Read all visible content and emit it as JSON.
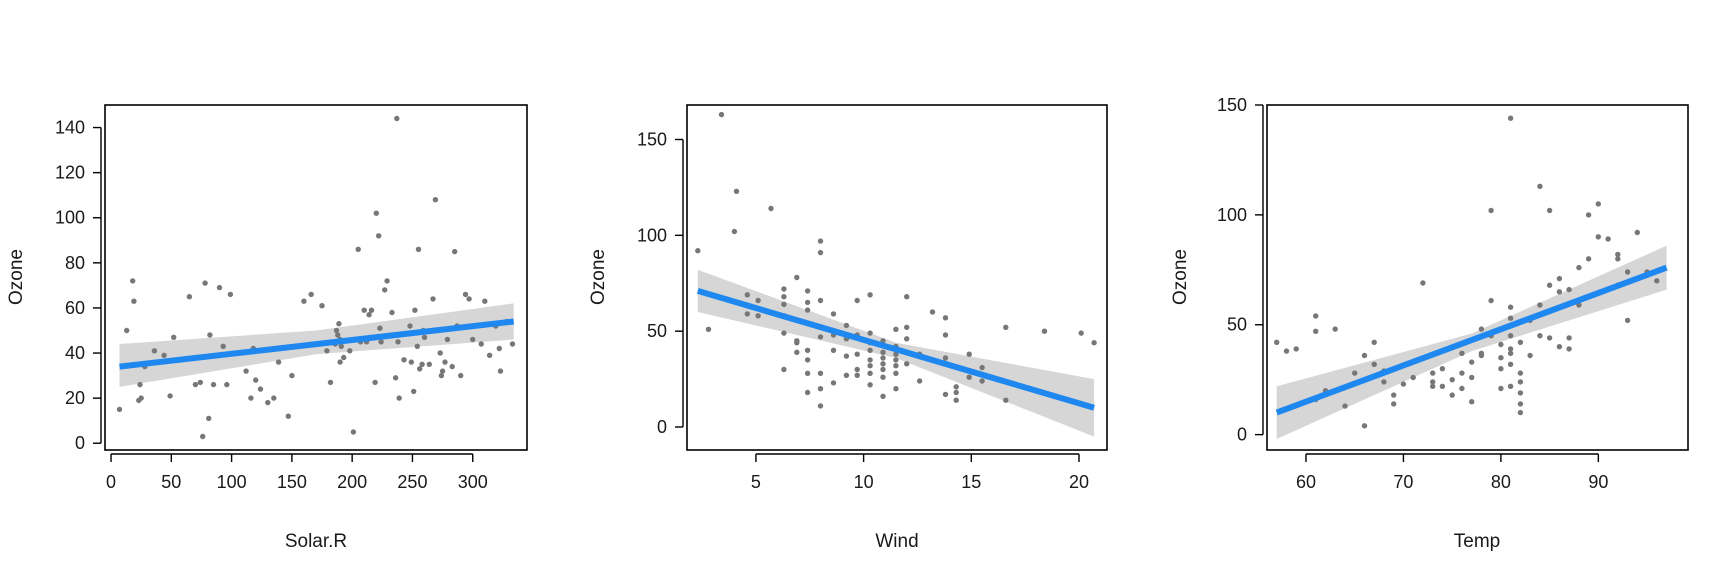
{
  "chart_data": [
    {
      "type": "scatter",
      "title": "",
      "xlabel": "Solar.R",
      "ylabel": "Ozone",
      "xlim": [
        -5,
        345
      ],
      "ylim": [
        -3,
        150
      ],
      "xticks": [
        0,
        50,
        100,
        150,
        200,
        250,
        300
      ],
      "yticks": [
        0,
        20,
        40,
        60,
        80,
        100,
        120,
        140
      ],
      "grid": false,
      "legend": "none",
      "colors": {
        "points": "#777777",
        "line": "#1e88f0",
        "band": "#d6d6d6"
      },
      "trend_line": [
        [
          7,
          34
        ],
        [
          334,
          54
        ]
      ],
      "confidence_band": {
        "x": [
          7,
          170,
          334
        ],
        "upper": [
          44,
          50,
          62
        ],
        "lower": [
          25,
          39.5,
          46
        ]
      },
      "points": [
        [
          7,
          15
        ],
        [
          13,
          50
        ],
        [
          18,
          72
        ],
        [
          19,
          63
        ],
        [
          23,
          19
        ],
        [
          24,
          26
        ],
        [
          25,
          20
        ],
        [
          28,
          34
        ],
        [
          36,
          41
        ],
        [
          44,
          39
        ],
        [
          49,
          21
        ],
        [
          52,
          47
        ],
        [
          70,
          26
        ],
        [
          65,
          65
        ],
        [
          74,
          27
        ],
        [
          76,
          3
        ],
        [
          78,
          71
        ],
        [
          81,
          11
        ],
        [
          82,
          48
        ],
        [
          85,
          26
        ],
        [
          90,
          69
        ],
        [
          93,
          43
        ],
        [
          96,
          26
        ],
        [
          99,
          66
        ],
        [
          112,
          32
        ],
        [
          116,
          20
        ],
        [
          118,
          42
        ],
        [
          120,
          28
        ],
        [
          124,
          24
        ],
        [
          130,
          18
        ],
        [
          135,
          20
        ],
        [
          139,
          36
        ],
        [
          147,
          12
        ],
        [
          150,
          30
        ],
        [
          160,
          63
        ],
        [
          166,
          66
        ],
        [
          175,
          61
        ],
        [
          179,
          41
        ],
        [
          182,
          27
        ],
        [
          186,
          44
        ],
        [
          187,
          50
        ],
        [
          188,
          48
        ],
        [
          189,
          53
        ],
        [
          190,
          46
        ],
        [
          190,
          36
        ],
        [
          191,
          43
        ],
        [
          193,
          38
        ],
        [
          198,
          41
        ],
        [
          201,
          5
        ],
        [
          205,
          86
        ],
        [
          207,
          45
        ],
        [
          210,
          59
        ],
        [
          212,
          45
        ],
        [
          214,
          57
        ],
        [
          216,
          59
        ],
        [
          219,
          27
        ],
        [
          220,
          102
        ],
        [
          222,
          92
        ],
        [
          223,
          51
        ],
        [
          224,
          45
        ],
        [
          227,
          68
        ],
        [
          229,
          72
        ],
        [
          233,
          58
        ],
        [
          236,
          29
        ],
        [
          237,
          144
        ],
        [
          238,
          45
        ],
        [
          239,
          20
        ],
        [
          243,
          37
        ],
        [
          248,
          52
        ],
        [
          249,
          36
        ],
        [
          251,
          23
        ],
        [
          252,
          59
        ],
        [
          254,
          43
        ],
        [
          255,
          86
        ],
        [
          256,
          33
        ],
        [
          258,
          35
        ],
        [
          259,
          50
        ],
        [
          260,
          47
        ],
        [
          264,
          35
        ],
        [
          267,
          64
        ],
        [
          269,
          108
        ],
        [
          273,
          40
        ],
        [
          274,
          30
        ],
        [
          275,
          32
        ],
        [
          277,
          36
        ],
        [
          279,
          46
        ],
        [
          283,
          34
        ],
        [
          285,
          85
        ],
        [
          287,
          52
        ],
        [
          290,
          30
        ],
        [
          294,
          66
        ],
        [
          297,
          64
        ],
        [
          300,
          46
        ],
        [
          307,
          44
        ],
        [
          310,
          63
        ],
        [
          314,
          39
        ],
        [
          319,
          52
        ],
        [
          322,
          42
        ],
        [
          323,
          32
        ],
        [
          328,
          54
        ],
        [
          333,
          44
        ]
      ]
    },
    {
      "type": "scatter",
      "title": "",
      "xlabel": "Wind",
      "ylabel": "Ozone",
      "xlim": [
        1.8,
        21.3
      ],
      "ylim": [
        -12,
        168
      ],
      "xticks": [
        5,
        10,
        15,
        20
      ],
      "yticks": [
        0,
        50,
        100,
        150
      ],
      "grid": false,
      "legend": "none",
      "colors": {
        "points": "#777777",
        "line": "#1e88f0",
        "band": "#d6d6d6"
      },
      "trend_line": [
        [
          2.3,
          71
        ],
        [
          20.7,
          10
        ]
      ],
      "confidence_band": {
        "x": [
          2.3,
          11.5,
          20.7
        ],
        "upper": [
          82,
          44,
          25
        ],
        "lower": [
          60,
          36,
          -5
        ]
      },
      "points": [
        [
          2.3,
          92
        ],
        [
          2.8,
          51
        ],
        [
          3.4,
          163
        ],
        [
          4.0,
          102
        ],
        [
          4.1,
          123
        ],
        [
          4.6,
          69
        ],
        [
          4.6,
          59
        ],
        [
          5.1,
          66
        ],
        [
          5.1,
          58
        ],
        [
          5.7,
          114
        ],
        [
          6.3,
          72
        ],
        [
          6.3,
          68
        ],
        [
          6.3,
          64
        ],
        [
          6.3,
          58
        ],
        [
          6.3,
          49
        ],
        [
          6.3,
          30
        ],
        [
          6.9,
          78
        ],
        [
          6.9,
          45
        ],
        [
          6.9,
          44
        ],
        [
          6.9,
          39
        ],
        [
          7.4,
          71
        ],
        [
          7.4,
          65
        ],
        [
          7.4,
          61
        ],
        [
          7.4,
          40
        ],
        [
          7.4,
          35
        ],
        [
          7.4,
          28
        ],
        [
          7.4,
          18
        ],
        [
          8.0,
          97
        ],
        [
          8.0,
          91
        ],
        [
          8.0,
          66
        ],
        [
          8.0,
          47
        ],
        [
          8.0,
          28
        ],
        [
          8.0,
          20
        ],
        [
          8.0,
          11
        ],
        [
          8.6,
          59
        ],
        [
          8.6,
          48
        ],
        [
          8.6,
          40
        ],
        [
          8.6,
          23
        ],
        [
          9.2,
          53
        ],
        [
          9.2,
          46
        ],
        [
          9.2,
          37
        ],
        [
          9.2,
          27
        ],
        [
          9.7,
          66
        ],
        [
          9.7,
          48
        ],
        [
          9.7,
          38
        ],
        [
          9.7,
          30
        ],
        [
          9.7,
          27
        ],
        [
          10.3,
          69
        ],
        [
          10.3,
          49
        ],
        [
          10.3,
          44
        ],
        [
          10.3,
          40
        ],
        [
          10.3,
          35
        ],
        [
          10.3,
          32
        ],
        [
          10.3,
          28
        ],
        [
          10.3,
          22
        ],
        [
          10.9,
          45
        ],
        [
          10.9,
          39
        ],
        [
          10.9,
          36
        ],
        [
          10.9,
          33
        ],
        [
          10.9,
          30
        ],
        [
          10.9,
          26
        ],
        [
          10.9,
          16
        ],
        [
          11.5,
          51
        ],
        [
          11.5,
          42
        ],
        [
          11.5,
          38
        ],
        [
          11.5,
          35
        ],
        [
          11.5,
          32
        ],
        [
          11.5,
          28
        ],
        [
          11.5,
          20
        ],
        [
          12.0,
          68
        ],
        [
          12.0,
          52
        ],
        [
          12.0,
          46
        ],
        [
          12.0,
          33
        ],
        [
          12.6,
          38
        ],
        [
          12.6,
          24
        ],
        [
          13.2,
          60
        ],
        [
          13.8,
          57
        ],
        [
          13.8,
          48
        ],
        [
          13.8,
          36
        ],
        [
          13.8,
          17
        ],
        [
          14.3,
          21
        ],
        [
          14.3,
          18
        ],
        [
          14.3,
          14
        ],
        [
          14.9,
          38
        ],
        [
          14.9,
          26
        ],
        [
          15.5,
          31
        ],
        [
          15.5,
          24
        ],
        [
          16.6,
          52
        ],
        [
          16.6,
          14
        ],
        [
          18.4,
          50
        ],
        [
          20.1,
          49
        ],
        [
          20.7,
          44
        ]
      ]
    },
    {
      "type": "scatter",
      "title": "",
      "xlabel": "Temp",
      "ylabel": "Ozone",
      "xlim": [
        56,
        99.2
      ],
      "ylim": [
        -7,
        150
      ],
      "xticks": [
        60,
        70,
        80,
        90
      ],
      "yticks": [
        0,
        50,
        100,
        150
      ],
      "grid": false,
      "legend": "none",
      "colors": {
        "points": "#777777",
        "line": "#1e88f0",
        "band": "#d6d6d6"
      },
      "trend_line": [
        [
          57,
          10
        ],
        [
          97,
          76
        ]
      ],
      "confidence_band": {
        "x": [
          57,
          77,
          97
        ],
        "upper": [
          22,
          46,
          86
        ],
        "lower": [
          -2,
          38,
          66
        ]
      },
      "points": [
        [
          57,
          42
        ],
        [
          58,
          38
        ],
        [
          59,
          39
        ],
        [
          61,
          54
        ],
        [
          61,
          47
        ],
        [
          61,
          16
        ],
        [
          62,
          20
        ],
        [
          63,
          48
        ],
        [
          64,
          13
        ],
        [
          65,
          28
        ],
        [
          66,
          4
        ],
        [
          66,
          36
        ],
        [
          67,
          42
        ],
        [
          67,
          32
        ],
        [
          68,
          29
        ],
        [
          68,
          24
        ],
        [
          69,
          14
        ],
        [
          69,
          18
        ],
        [
          70,
          23
        ],
        [
          71,
          26
        ],
        [
          72,
          69
        ],
        [
          73,
          24
        ],
        [
          73,
          28
        ],
        [
          73,
          22
        ],
        [
          74,
          22
        ],
        [
          74,
          30
        ],
        [
          75,
          18
        ],
        [
          75,
          25
        ],
        [
          76,
          21
        ],
        [
          76,
          28
        ],
        [
          76,
          37
        ],
        [
          77,
          15
        ],
        [
          77,
          26
        ],
        [
          77,
          33
        ],
        [
          78,
          36
        ],
        [
          78,
          37
        ],
        [
          78,
          48
        ],
        [
          79,
          45
        ],
        [
          79,
          61
        ],
        [
          79,
          102
        ],
        [
          80,
          21
        ],
        [
          80,
          30
        ],
        [
          80,
          35
        ],
        [
          80,
          41
        ],
        [
          81,
          22
        ],
        [
          81,
          32
        ],
        [
          81,
          37
        ],
        [
          81,
          39
        ],
        [
          81,
          45
        ],
        [
          81,
          53
        ],
        [
          81,
          58
        ],
        [
          81,
          144
        ],
        [
          82,
          10
        ],
        [
          82,
          14
        ],
        [
          82,
          19
        ],
        [
          82,
          24
        ],
        [
          82,
          28
        ],
        [
          82,
          42
        ],
        [
          83,
          36
        ],
        [
          83,
          52
        ],
        [
          84,
          45
        ],
        [
          84,
          59
        ],
        [
          84,
          113
        ],
        [
          85,
          44
        ],
        [
          85,
          68
        ],
        [
          85,
          102
        ],
        [
          86,
          40
        ],
        [
          86,
          65
        ],
        [
          86,
          71
        ],
        [
          87,
          39
        ],
        [
          87,
          44
        ],
        [
          87,
          66
        ],
        [
          88,
          59
        ],
        [
          88,
          76
        ],
        [
          89,
          80
        ],
        [
          89,
          100
        ],
        [
          90,
          90
        ],
        [
          90,
          105
        ],
        [
          91,
          89
        ],
        [
          92,
          68
        ],
        [
          92,
          80
        ],
        [
          92,
          82
        ],
        [
          93,
          52
        ],
        [
          93,
          74
        ],
        [
          94,
          92
        ],
        [
          95,
          74
        ],
        [
          96,
          70
        ]
      ]
    }
  ]
}
